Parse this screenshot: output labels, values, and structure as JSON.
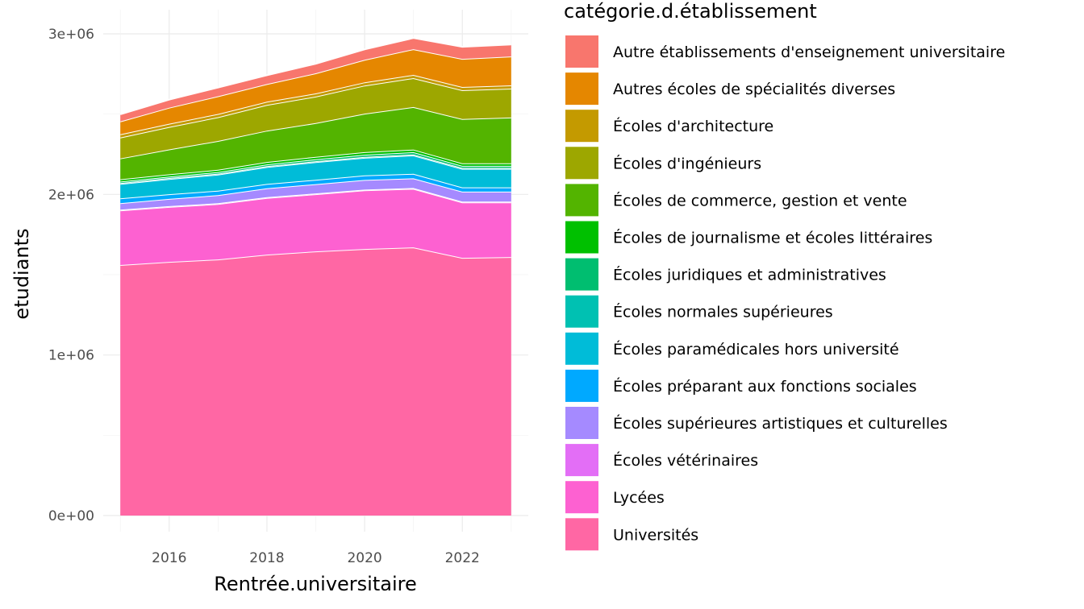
{
  "chart_data": {
    "type": "area",
    "stacked": true,
    "xlabel": "Rentrée.universitaire",
    "ylabel": "etudiants",
    "x": [
      2015,
      2016,
      2017,
      2018,
      2019,
      2020,
      2021,
      2022,
      2023
    ],
    "xlim": [
      2014.65,
      2023.35
    ],
    "ylim": [
      0,
      3000000
    ],
    "x_ticks": [
      2016,
      2018,
      2020,
      2022
    ],
    "x_tick_labels": [
      "2016",
      "2018",
      "2020",
      "2022"
    ],
    "y_ticks": [
      0,
      1000000,
      2000000,
      3000000
    ],
    "y_tick_labels": [
      "0e+00",
      "1e+06",
      "2e+06",
      "3e+06"
    ],
    "grid": true,
    "legend_position": "right",
    "legend_title": "catégorie.d.établissement",
    "series": [
      {
        "name": "Universités",
        "color": "#FF67A4",
        "values": [
          1560000,
          1580000,
          1595000,
          1625000,
          1645000,
          1660000,
          1670000,
          1605000,
          1610000
        ]
      },
      {
        "name": "Lycées",
        "color": "#FD61D1",
        "values": [
          340000,
          342000,
          345000,
          353000,
          356000,
          365000,
          365000,
          345000,
          340000
        ]
      },
      {
        "name": "Écoles vétérinaires",
        "color": "#E36EF6",
        "values": [
          5000,
          5000,
          5000,
          5000,
          5000,
          5000,
          5000,
          5000,
          5000
        ]
      },
      {
        "name": "Écoles supérieures artistiques et culturelles",
        "color": "#A58AFF",
        "values": [
          40000,
          45000,
          50000,
          55000,
          58000,
          60000,
          60000,
          62000,
          62000
        ]
      },
      {
        "name": "Écoles préparant aux fonctions sociales",
        "color": "#00A9FF",
        "values": [
          30000,
          29000,
          28000,
          27000,
          27000,
          28000,
          28000,
          27000,
          27000
        ]
      },
      {
        "name": "Écoles paramédicales hors université",
        "color": "#00BCD8",
        "values": [
          90000,
          95000,
          100000,
          105000,
          110000,
          110000,
          115000,
          115000,
          115000
        ]
      },
      {
        "name": "Écoles normales supérieures",
        "color": "#00C1B2",
        "values": [
          6000,
          6000,
          6000,
          6000,
          6000,
          6000,
          6000,
          6000,
          6000
        ]
      },
      {
        "name": "Écoles juridiques et administratives",
        "color": "#00BE70",
        "values": [
          9000,
          9000,
          10000,
          11000,
          12000,
          13000,
          14000,
          13000,
          13000
        ]
      },
      {
        "name": "Écoles de journalisme et écoles littéraires",
        "color": "#00C000",
        "values": [
          14000,
          14000,
          14000,
          15000,
          15000,
          16000,
          16000,
          16000,
          16000
        ]
      },
      {
        "name": "Écoles de commerce, gestion et vente",
        "color": "#53B400",
        "values": [
          130000,
          155000,
          180000,
          195000,
          210000,
          240000,
          265000,
          275000,
          285000
        ]
      },
      {
        "name": "Écoles d'ingénieurs",
        "color": "#9DA700",
        "values": [
          130000,
          140000,
          148000,
          160000,
          165000,
          175000,
          180000,
          180000,
          180000
        ]
      },
      {
        "name": "Écoles d'architecture",
        "color": "#C49A00",
        "values": [
          20000,
          20000,
          20000,
          20000,
          20000,
          20000,
          20000,
          20000,
          20000
        ]
      },
      {
        "name": "Autres écoles de spécialités diverses",
        "color": "#E58700",
        "values": [
          80000,
          100000,
          110000,
          110000,
          125000,
          140000,
          160000,
          175000,
          180000
        ]
      },
      {
        "name": "Autre établissements d'enseignement universitaire",
        "color": "#F8766D",
        "values": [
          45000,
          50000,
          55000,
          55000,
          60000,
          65000,
          70000,
          75000,
          75000
        ]
      }
    ]
  }
}
